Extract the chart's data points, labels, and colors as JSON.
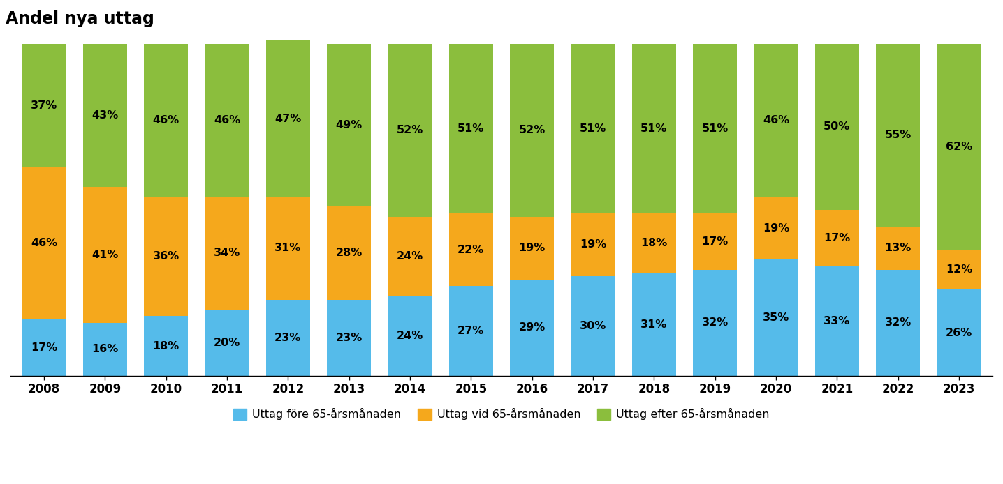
{
  "title": "Andel nya uttag",
  "years": [
    2008,
    2009,
    2010,
    2011,
    2012,
    2013,
    2014,
    2015,
    2016,
    2017,
    2018,
    2019,
    2020,
    2021,
    2022,
    2023
  ],
  "before": [
    17,
    16,
    18,
    20,
    23,
    23,
    24,
    27,
    29,
    30,
    31,
    32,
    35,
    33,
    32,
    26
  ],
  "at": [
    46,
    41,
    36,
    34,
    31,
    28,
    24,
    22,
    19,
    19,
    18,
    17,
    19,
    17,
    13,
    12
  ],
  "after": [
    37,
    43,
    46,
    46,
    47,
    49,
    52,
    51,
    52,
    51,
    51,
    51,
    46,
    50,
    55,
    62
  ],
  "color_before": "#55BBEA",
  "color_at": "#F5A81C",
  "color_after": "#8BBE3D",
  "legend_before": "Uttag före 65-årsmånaden",
  "legend_at": "Uttag vid 65-årsmånaden",
  "legend_after": "Uttag efter 65-årsmånaden",
  "background_color": "#FFFFFF",
  "bar_width": 0.72,
  "title_fontsize": 17,
  "label_fontsize": 11.5,
  "tick_fontsize": 12,
  "legend_fontsize": 11.5
}
